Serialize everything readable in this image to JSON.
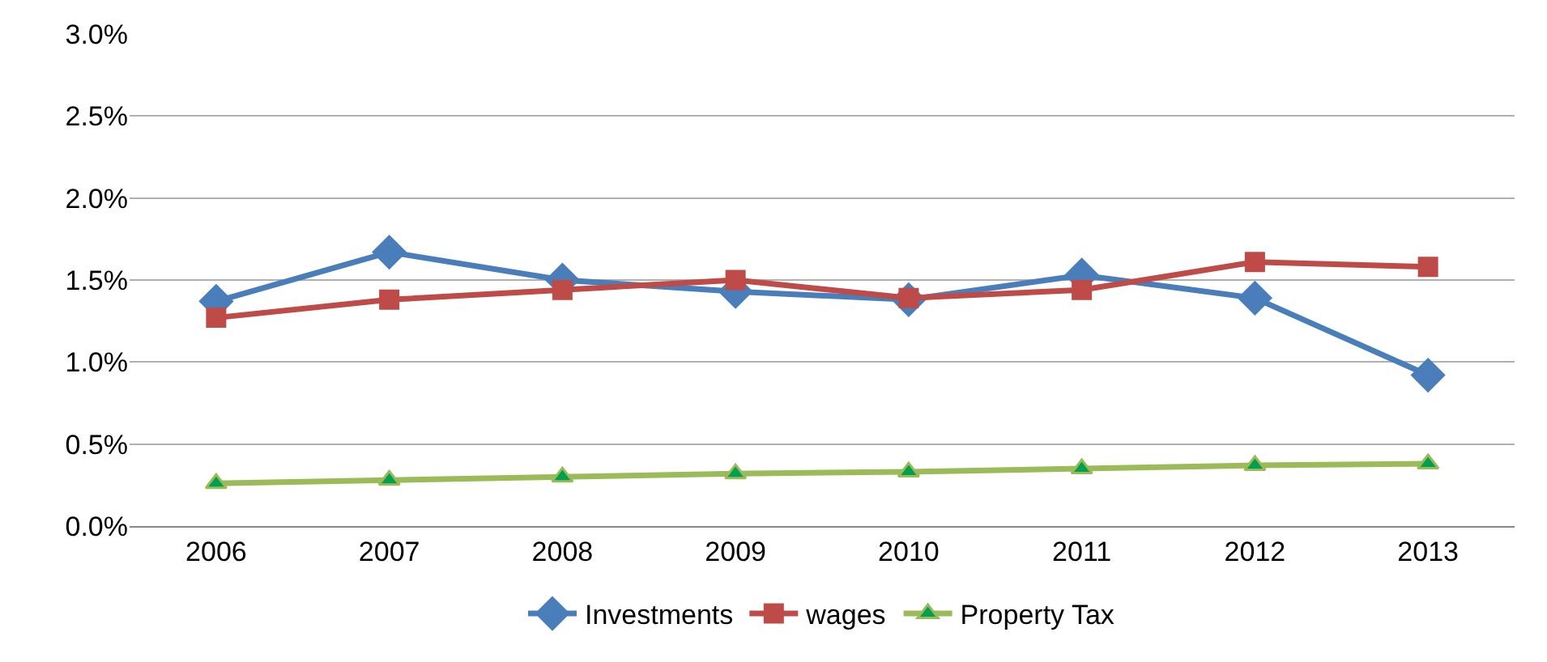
{
  "chart_data": {
    "type": "line",
    "categories": [
      "2006",
      "2007",
      "2008",
      "2009",
      "2010",
      "2011",
      "2012",
      "2013"
    ],
    "series": [
      {
        "name": "Investments",
        "color": "#4a7ebb",
        "marker": "diamond",
        "values": [
          1.37,
          1.67,
          1.5,
          1.43,
          1.38,
          1.53,
          1.39,
          0.92
        ]
      },
      {
        "name": "wages",
        "color": "#be4b48",
        "marker": "square",
        "values": [
          1.27,
          1.38,
          1.44,
          1.5,
          1.39,
          1.44,
          1.61,
          1.58
        ]
      },
      {
        "name": "Property Tax",
        "color": "#9bbb59",
        "marker": "triangle",
        "values": [
          0.26,
          0.28,
          0.3,
          0.32,
          0.33,
          0.35,
          0.37,
          0.38
        ]
      }
    ],
    "ylim": [
      0,
      3
    ],
    "yticks": [
      {
        "value": 0,
        "label": "0.0%"
      },
      {
        "value": 0.5,
        "label": "0.5%"
      },
      {
        "value": 1,
        "label": "1.0%"
      },
      {
        "value": 1.5,
        "label": "1.5%"
      },
      {
        "value": 2,
        "label": "2.0%"
      },
      {
        "value": 2.5,
        "label": "2.5%"
      },
      {
        "value": 3,
        "label": "3.0%"
      }
    ],
    "grid": "y",
    "legend": "bottom",
    "line_style": "solid"
  }
}
